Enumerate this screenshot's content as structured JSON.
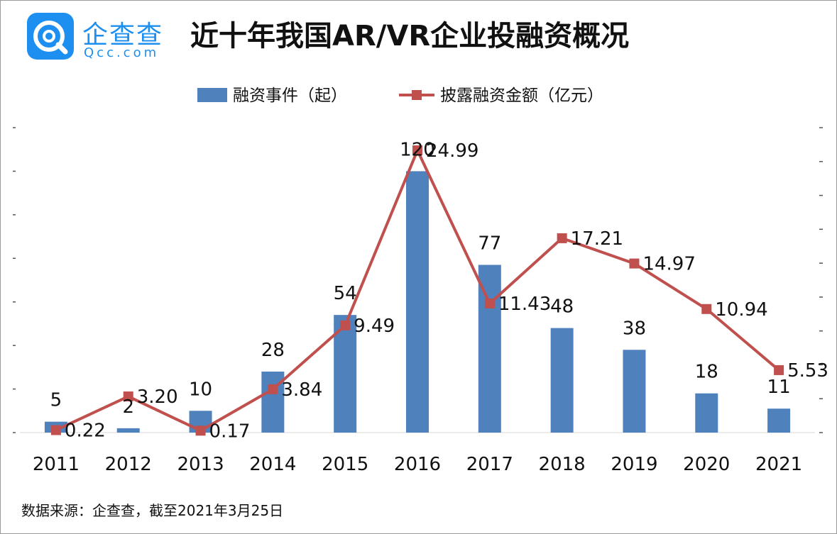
{
  "header": {
    "logo_name": "企查查",
    "logo_domain": "Qcc.com",
    "title": "近十年我国AR/VR企业投融资概况"
  },
  "footer": {
    "source": "数据来源：企查查，截至2021年3月25日"
  },
  "colors": {
    "bar": "#4f81bd",
    "line": "#c0504d",
    "brand": "#1d8ff0"
  },
  "chart_data": {
    "type": "bar",
    "title": "近十年我国AR/VR企业投融资概况",
    "categories": [
      "2011",
      "2012",
      "2013",
      "2014",
      "2015",
      "2016",
      "2017",
      "2018",
      "2019",
      "2020",
      "2021"
    ],
    "series": [
      {
        "name": "融资事件（起）",
        "type": "bar",
        "axis": "left",
        "values": [
          5,
          2,
          10,
          28,
          54,
          120,
          77,
          48,
          38,
          18,
          11
        ],
        "labels": [
          "5",
          "2",
          "10",
          "28",
          "54",
          "120",
          "77",
          "48",
          "38",
          "18",
          "11"
        ]
      },
      {
        "name": "披露融资金额（亿元）",
        "type": "line",
        "axis": "right",
        "marker": "square",
        "values": [
          0.22,
          3.2,
          0.17,
          3.84,
          9.49,
          24.99,
          11.43,
          17.21,
          14.97,
          10.94,
          5.53
        ],
        "labels": [
          "0.22",
          "3.20",
          "0.17",
          "3.84",
          "9.49",
          "24.99",
          "11.43",
          "17.21",
          "14.97",
          "10.94",
          "5.53"
        ]
      }
    ],
    "ylim_left": [
      0,
      140
    ],
    "ylim_right": [
      0,
      27
    ],
    "legend": "top-center",
    "grid": false
  }
}
